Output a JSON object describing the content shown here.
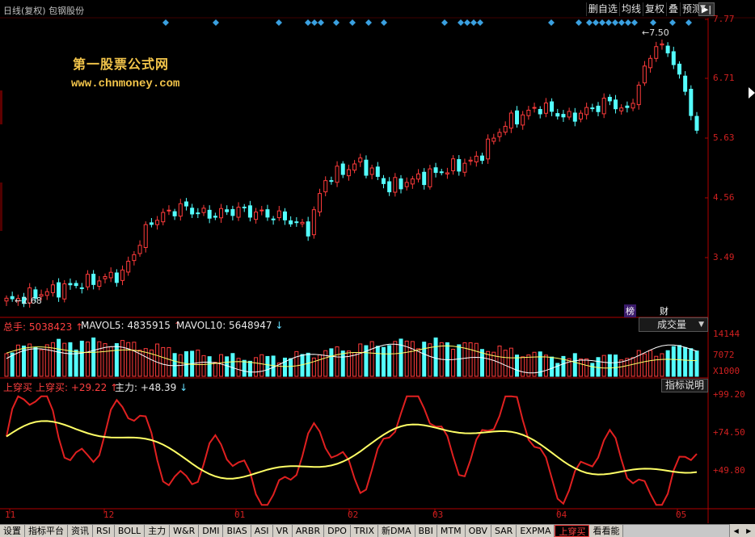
{
  "header": {
    "title": "日线(复权) 包钢股份",
    "buttons": [
      "删自选",
      "均线",
      "复权",
      "叠",
      "预测"
    ],
    "nav_arrow": "▶|"
  },
  "watermark": {
    "line1": "第一股票公式网",
    "line2": "www.chnmoney.com"
  },
  "price_axis": {
    "labels": [
      "7.77",
      "6.71",
      "5.63",
      "4.56",
      "3.49"
    ],
    "max_label": "7.50",
    "min_label": "2.68"
  },
  "badges": {
    "bang": "榜",
    "cai": "财"
  },
  "volume": {
    "total_label": "总手: 5038423",
    "mavol5_label": "MAVOL5: 4835915",
    "mavol10_label": "MAVOL10: 5648947",
    "dropdown_value": "成交量",
    "axis_labels": [
      "14144",
      "7072"
    ],
    "unit": "X1000"
  },
  "indicator": {
    "name": "上穿买",
    "value_label": "上穿买: +29.22",
    "main_label": "主力: +48.39",
    "explain_button": "指标说明",
    "axis_labels": [
      "+99.20",
      "+74.50",
      "+49.80"
    ]
  },
  "x_axis": {
    "labels": [
      "11",
      "12",
      "01",
      "02",
      "03",
      "04",
      "05"
    ]
  },
  "tabs": [
    "设置",
    "指标平台",
    "资讯",
    "RSI",
    "BOLL",
    "主力",
    "W&R",
    "DMI",
    "BIAS",
    "ASI",
    "VR",
    "ARBR",
    "DPO",
    "TRIX",
    "新DMA",
    "BBI",
    "MTM",
    "OBV",
    "SAR",
    "EXPMA",
    "上穿买",
    "看看能"
  ],
  "active_tab": "上穿买",
  "colors": {
    "up": "#ff3b3b",
    "down": "#54ffff",
    "axis": "#b00000",
    "ma_white": "#ffffff",
    "ma_yellow": "#ffff66",
    "diamond": "#3aa0e0"
  }
}
